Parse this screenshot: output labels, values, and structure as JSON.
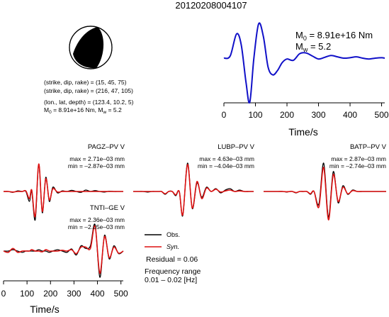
{
  "title": "20120208004107",
  "mechanism": {
    "plane1": "(strike, dip, rake) = (15, 45, 75)",
    "plane2": "(strike, dip, rake) = (216, 47, 105)",
    "location": "(lon., lat, depth) = (123.4, 10.2, 5)",
    "moment_line_prefix": "M",
    "moment_line_sub0": "0",
    "moment_line_mid": " = 8.91e+16 Nm, M",
    "moment_line_subw": "w",
    "moment_line_end": " = 5.2"
  },
  "stf_panel": {
    "m0_letter": "M",
    "m0_sub": "0",
    "m0_value": " = 8.91e+16 Nm",
    "mw_letter": "M",
    "mw_sub": "w",
    "mw_value": " = 5.2",
    "xlabel": "Time/s",
    "xticks": [
      "0",
      "100",
      "200",
      "300",
      "400",
      "500"
    ],
    "color": "#1010c8"
  },
  "waveform_xaxis": {
    "xlabel": "Time/s",
    "xticks": [
      "0",
      "100",
      "200",
      "300",
      "400",
      "500"
    ]
  },
  "stations": [
    {
      "name": "PAGZ–PV V",
      "max": "max = 2.71e–03 mm",
      "min": "min = –2.87e–03 mm"
    },
    {
      "name": "LUBP–PV V",
      "max": "max = 4.63e–03 mm",
      "min": "min = –4.04e–03 mm"
    },
    {
      "name": "BATP–PV V",
      "max": "max = 2.87e–03 mm",
      "min": "min = –2.74e–03 mm"
    },
    {
      "name": "TNTI–GE V",
      "max": "max = 2.36e–03 mm",
      "min": "min = –2.05e–03 mm"
    }
  ],
  "legend": {
    "obs": "Obs.",
    "syn": "Syn.",
    "obs_color": "#000000",
    "syn_color": "#dd1111"
  },
  "residual": "Residual = 0.06",
  "frequency_label": "Frequency range",
  "frequency_value": "0.01 – 0.02 [Hz]",
  "chart_data": [
    {
      "type": "line",
      "name": "source_time_function",
      "xlabel": "Time/s",
      "ylabel": "",
      "xlim": [
        0,
        510
      ],
      "ylim": [
        -1.0,
        1.0
      ],
      "x": [
        0,
        20,
        40,
        55,
        70,
        82,
        95,
        110,
        125,
        140,
        155,
        170,
        185,
        200,
        220,
        240,
        260,
        280,
        300,
        320,
        340,
        360,
        380,
        400,
        420,
        440,
        460,
        480,
        500,
        510
      ],
      "y": [
        0.0,
        0.05,
        0.55,
        0.3,
        -0.55,
        -1.0,
        0.0,
        0.78,
        0.5,
        -0.2,
        -0.38,
        -0.28,
        -0.1,
        -0.02,
        -0.05,
        0.1,
        0.12,
        0.05,
        -0.02,
        0.02,
        0.06,
        0.03,
        0.0,
        0.01,
        0.03,
        0.0,
        -0.02,
        0.0,
        0.01,
        0.0
      ]
    },
    {
      "type": "line",
      "name": "waveforms",
      "xlabel": "Time/s",
      "xlim": [
        0,
        510
      ],
      "ylim": [
        -1.0,
        1.0
      ],
      "x": [
        0,
        20,
        40,
        60,
        80,
        95,
        110,
        120,
        135,
        150,
        165,
        180,
        195,
        210,
        230,
        250,
        270,
        290,
        310,
        330,
        350,
        370,
        390,
        410,
        430,
        450,
        470,
        490,
        510
      ],
      "traces": [
        {
          "station": "PAGZ–PV V",
          "obs": [
            0.0,
            0.0,
            -0.03,
            0.02,
            0.0,
            0.0,
            -0.35,
            0.0,
            -1.0,
            0.95,
            -0.75,
            0.5,
            -0.35,
            0.15,
            -0.05,
            0.02,
            0.0,
            0.04,
            0.0,
            -0.03,
            0.05,
            0.0,
            0.03,
            0.0,
            -0.02,
            0.01,
            0.0,
            0.0,
            0.0
          ],
          "syn": [
            0.0,
            0.0,
            -0.02,
            0.0,
            0.0,
            0.02,
            -0.25,
            0.05,
            -0.88,
            0.97,
            -0.7,
            0.45,
            -0.3,
            0.1,
            -0.02,
            0.0,
            0.0,
            0.0,
            0.0,
            0.0,
            0.0,
            0.0,
            0.0,
            0.0,
            0.0,
            0.0,
            0.0,
            0.0,
            0.0
          ]
        },
        {
          "station": "LUBP–PV V",
          "obs": [
            0.0,
            0.0,
            0.0,
            -0.02,
            0.0,
            0.0,
            0.0,
            0.0,
            -0.1,
            0.0,
            0.0,
            -0.15,
            0.0,
            -0.85,
            1.0,
            -0.6,
            0.3,
            -0.2,
            0.15,
            0.0,
            0.1,
            -0.05,
            0.05,
            0.1,
            0.0,
            0.05,
            0.0,
            0.0,
            0.0
          ],
          "syn": [
            0.0,
            0.0,
            0.0,
            0.0,
            0.0,
            0.0,
            0.0,
            0.0,
            -0.08,
            0.0,
            0.0,
            -0.12,
            0.0,
            -0.82,
            0.95,
            -0.58,
            0.35,
            -0.25,
            0.12,
            0.0,
            0.08,
            -0.02,
            0.02,
            0.05,
            0.0,
            0.02,
            0.0,
            0.0,
            0.0
          ]
        },
        {
          "station": "BATP–PV V",
          "obs": [
            0.0,
            0.0,
            0.0,
            0.0,
            0.0,
            -0.02,
            0.0,
            0.0,
            -0.05,
            0.0,
            0.0,
            0.0,
            -0.1,
            0.0,
            -0.45,
            1.0,
            -0.9,
            0.7,
            -0.4,
            0.2,
            -0.1,
            0.05,
            0.0,
            0.0,
            0.0,
            0.0,
            0.0,
            0.0,
            0.0
          ],
          "syn": [
            0.0,
            0.0,
            0.0,
            0.0,
            0.0,
            -0.01,
            0.0,
            0.0,
            -0.04,
            0.0,
            0.0,
            0.0,
            -0.08,
            0.0,
            -0.55,
            0.85,
            -1.0,
            0.6,
            -0.35,
            0.15,
            -0.08,
            0.03,
            0.0,
            0.0,
            0.0,
            0.0,
            0.0,
            0.0,
            0.0
          ]
        },
        {
          "station": "TNTI–GE V",
          "obs": [
            0.0,
            0.0,
            0.05,
            0.0,
            -0.05,
            0.0,
            0.0,
            0.0,
            0.0,
            0.05,
            0.0,
            0.0,
            -0.05,
            0.0,
            0.05,
            0.0,
            -0.05,
            0.08,
            -0.15,
            0.2,
            0.1,
            0.2,
            1.0,
            -1.0,
            0.6,
            -0.3,
            0.2,
            -0.1,
            0.0
          ],
          "syn": [
            0.0,
            -0.05,
            0.1,
            -0.05,
            0.0,
            0.0,
            0.0,
            0.05,
            0.0,
            0.0,
            -0.03,
            0.05,
            0.0,
            0.0,
            0.0,
            0.03,
            0.0,
            0.05,
            -0.1,
            0.15,
            0.15,
            0.1,
            0.95,
            -0.85,
            0.55,
            -0.25,
            0.15,
            -0.08,
            0.0
          ]
        }
      ]
    }
  ]
}
